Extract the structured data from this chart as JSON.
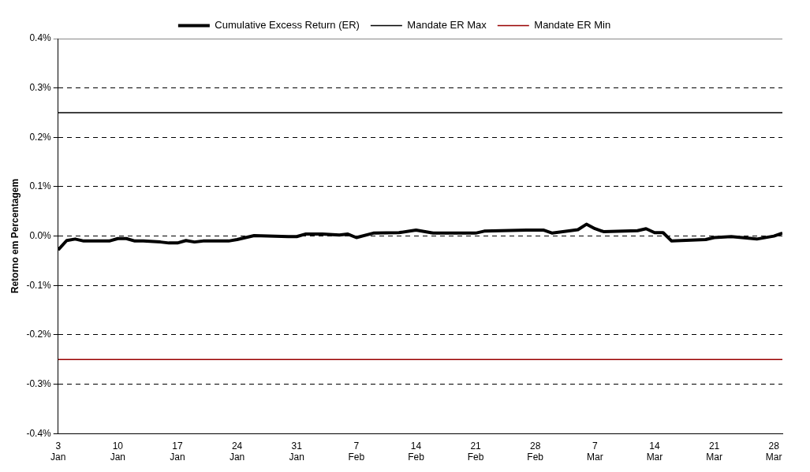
{
  "chart_data": {
    "type": "line",
    "ylabel": "Retorno em Percentagem",
    "x": [
      "--01-03",
      "--01-04",
      "--01-05",
      "--01-06",
      "--01-09",
      "--01-10",
      "--01-11",
      "--01-12",
      "--01-13",
      "--01-15",
      "--01-16",
      "--01-17",
      "--01-18",
      "--01-19",
      "--01-20",
      "--01-23",
      "--01-24",
      "--01-26",
      "--01-30",
      "--01-31",
      "--02-01",
      "--02-03",
      "--02-05",
      "--02-06",
      "--02-07",
      "--02-09",
      "--02-12",
      "--02-14",
      "--02-16",
      "--02-21",
      "--02-22",
      "--02-27",
      "--02-28",
      "--03-01",
      "--03-02",
      "--03-05",
      "--03-06",
      "--03-07",
      "--03-08",
      "--03-12",
      "--03-13",
      "--03-14",
      "--03-15",
      "--03-16",
      "--03-20",
      "--03-21",
      "--03-23",
      "--03-26",
      "--03-28",
      "--03-29"
    ],
    "series": [
      {
        "name": "Cumulative Excess Return (ER)",
        "color": "#000000",
        "values": [
          -0.028,
          -0.009,
          -0.006,
          -0.01,
          -0.01,
          -0.005,
          -0.005,
          -0.01,
          -0.01,
          -0.012,
          -0.014,
          -0.014,
          -0.009,
          -0.012,
          -0.01,
          -0.01,
          -0.007,
          0.001,
          -0.001,
          -0.001,
          0.004,
          0.004,
          0.002,
          0.004,
          -0.003,
          0.006,
          0.007,
          0.012,
          0.006,
          0.006,
          0.01,
          0.012,
          0.012,
          0.012,
          0.006,
          0.013,
          0.024,
          0.015,
          0.009,
          0.011,
          0.015,
          0.007,
          0.007,
          -0.01,
          -0.007,
          -0.003,
          -0.001,
          -0.006,
          0.0,
          0.006
        ]
      },
      {
        "name": "Mandate ER Max",
        "color": "#000000",
        "x": [
          "--01-03",
          "--03-29"
        ],
        "values": [
          0.25,
          0.25
        ]
      },
      {
        "name": "Mandate ER Min",
        "color": "#990000",
        "x": [
          "--01-03",
          "--03-29"
        ],
        "values": [
          -0.25,
          -0.25
        ]
      }
    ],
    "xlim": [
      "--01-03",
      "--03-29"
    ],
    "xticks": [
      {
        "value": "--01-03",
        "label": "3 Jan"
      },
      {
        "value": "--01-10",
        "label": "10 Jan"
      },
      {
        "value": "--01-17",
        "label": "17 Jan"
      },
      {
        "value": "--01-24",
        "label": "24 Jan"
      },
      {
        "value": "--01-31",
        "label": "31 Jan"
      },
      {
        "value": "--02-07",
        "label": "7 Feb"
      },
      {
        "value": "--02-14",
        "label": "14 Feb"
      },
      {
        "value": "--02-21",
        "label": "21 Feb"
      },
      {
        "value": "--02-28",
        "label": "28 Feb"
      },
      {
        "value": "--03-07",
        "label": "7 Mar"
      },
      {
        "value": "--03-14",
        "label": "14 Mar"
      },
      {
        "value": "--03-21",
        "label": "21 Mar"
      },
      {
        "value": "--03-28",
        "label": "28 Mar"
      }
    ],
    "ylim": [
      -0.4,
      0.4
    ],
    "yticks": [
      {
        "value": -0.4,
        "label": "-0.4%"
      },
      {
        "value": -0.3,
        "label": "-0.3%"
      },
      {
        "value": -0.2,
        "label": "-0.2%"
      },
      {
        "value": -0.1,
        "label": "-0.1%"
      },
      {
        "value": 0,
        "label": "0.0%"
      },
      {
        "value": 0.1,
        "label": "0.1%"
      },
      {
        "value": 0.2,
        "label": "0.2%"
      },
      {
        "value": 0.3,
        "label": "0.3%"
      },
      {
        "value": 0.4,
        "label": "0.4%"
      }
    ],
    "grid": "y",
    "legend": "top",
    "marker": "none",
    "line_style": "solid"
  }
}
